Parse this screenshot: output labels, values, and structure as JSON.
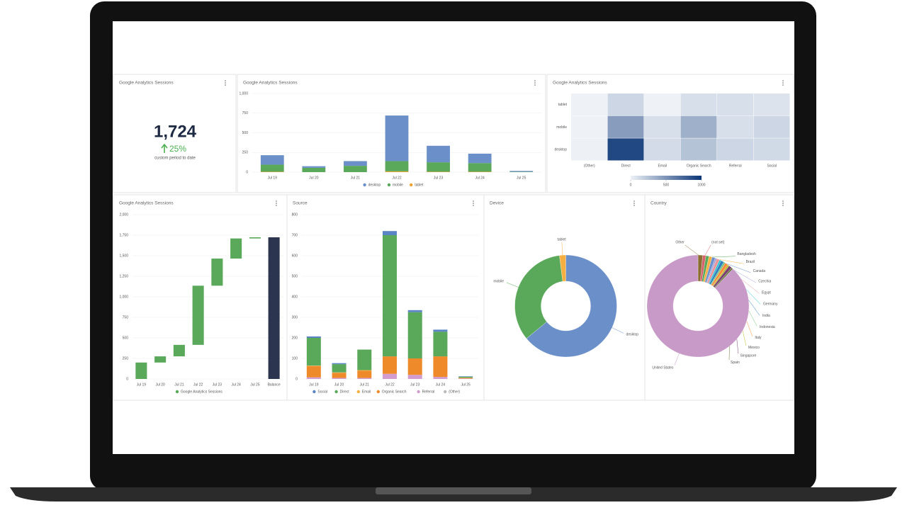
{
  "kpi": {
    "title": "Google Analytics Sessions",
    "value": "1,724",
    "change": "25%",
    "caption": "custom period to date"
  },
  "chart_data": [
    {
      "type": "bar",
      "stacked": true,
      "title": "Google Analytics Sessions",
      "categories": [
        "Jul 19",
        "Jul 20",
        "Jul 21",
        "Jul 22",
        "Jul 23",
        "Jul 24",
        "Jul 25"
      ],
      "series": [
        {
          "name": "desktop",
          "color": "#6a8fc9",
          "values": [
            120,
            20,
            60,
            580,
            210,
            120,
            10
          ]
        },
        {
          "name": "mobile",
          "color": "#5aa85a",
          "values": [
            90,
            55,
            80,
            130,
            120,
            110,
            5
          ]
        },
        {
          "name": "tablet",
          "color": "#f0a030",
          "values": [
            5,
            0,
            0,
            10,
            5,
            5,
            0
          ]
        }
      ],
      "ylim": [
        0,
        1000
      ],
      "yticks": [
        0,
        250,
        500,
        750,
        {
          "value": 1000,
          "label": "1,000"
        }
      ],
      "grid": true
    },
    {
      "type": "heatmap",
      "title": "Google Analytics Sessions",
      "rows": [
        "tablet",
        "mobile",
        "desktop"
      ],
      "columns": [
        "(Other)",
        "Direct",
        "Email",
        "Organic Search",
        "Referral",
        "Social"
      ],
      "values": [
        [
          0,
          150,
          0,
          100,
          100,
          80
        ],
        [
          0,
          450,
          100,
          350,
          100,
          150
        ],
        [
          5,
          900,
          120,
          250,
          150,
          130
        ]
      ],
      "colors": [
        "#eef2f7",
        "#0b3577"
      ],
      "clim": [
        0,
        1000
      ],
      "cticks": [
        0,
        500,
        1000
      ]
    },
    {
      "type": "waterfall",
      "title": "Google Analytics Sessions",
      "categories": [
        "Jul 19",
        "Jul 20",
        "Jul 21",
        "Jul 22",
        "Jul 23",
        "Jul 24",
        "Jul 25"
      ],
      "series": [
        {
          "name": "Google Analytics Sessions",
          "color": "#5aa85a",
          "values": [
            200,
            75,
            140,
            720,
            330,
            245,
            14
          ]
        }
      ],
      "total": {
        "label": "Balance",
        "value": 1724,
        "color": "#2c3550"
      },
      "ylim": [
        0,
        2000
      ],
      "yticks": [
        0,
        250,
        500,
        750,
        {
          "value": 1000,
          "label": "1,000"
        },
        {
          "value": 1250,
          "label": "1,250"
        },
        {
          "value": 1500,
          "label": "1,500"
        },
        {
          "value": 1750,
          "label": "1,750"
        },
        {
          "value": 2000,
          "label": "2,000"
        }
      ],
      "grid": true
    },
    {
      "type": "bar",
      "stacked": true,
      "title": "Source",
      "categories": [
        "Jul 19",
        "Jul 20",
        "Jul 21",
        "Jul 22",
        "Jul 23",
        "Jul 24",
        "Jul 25"
      ],
      "series": [
        {
          "name": "Social",
          "color": "#5b84c4",
          "values": [
            7,
            5,
            0,
            20,
            10,
            10,
            2
          ]
        },
        {
          "name": "Direct",
          "color": "#5aa85a",
          "values": [
            135,
            40,
            100,
            590,
            225,
            120,
            5
          ]
        },
        {
          "name": "Email",
          "color": "#f5b041",
          "values": [
            2,
            2,
            3,
            0,
            0,
            0,
            1
          ]
        },
        {
          "name": "Organic Search",
          "color": "#ef8a2b",
          "values": [
            55,
            25,
            35,
            85,
            80,
            100,
            3
          ]
        },
        {
          "name": "Referral",
          "color": "#d39ccf",
          "values": [
            8,
            5,
            5,
            25,
            20,
            10,
            2
          ]
        },
        {
          "name": "(Other)",
          "color": "#bbbbbb",
          "values": [
            0,
            0,
            0,
            0,
            0,
            0,
            0
          ]
        }
      ],
      "ylim": [
        0,
        800
      ],
      "yticks": [
        0,
        100,
        200,
        300,
        400,
        500,
        600,
        700,
        800
      ],
      "grid": true
    },
    {
      "type": "donut",
      "title": "Device",
      "categories": [
        "desktop",
        "mobile",
        "tablet"
      ],
      "values": [
        64,
        34,
        2
      ],
      "colors": [
        "#6a8fc9",
        "#5aa85a",
        "#f5b041"
      ]
    },
    {
      "type": "donut",
      "title": "Country",
      "categories": [
        "Other",
        "(not set)",
        "Bangladesh",
        "Brazil",
        "Canada",
        "Czechia",
        "Egypt",
        "Germany",
        "India",
        "Indonesia",
        "Italy",
        "Mexico",
        "Singapore",
        "Spain",
        "United States"
      ],
      "values": [
        1.5,
        1,
        1,
        1,
        1,
        0.5,
        1,
        0.5,
        1,
        0.5,
        1,
        0.5,
        1,
        0.5,
        88
      ],
      "colors": [
        "#8c6d31",
        "#d6616b",
        "#5aa85a",
        "#f5b041",
        "#6a8fc9",
        "#9c9ede",
        "#e7969c",
        "#17becf",
        "#3182bd",
        "#74c476",
        "#fd8d3c",
        "#bcbd22",
        "#7b4173",
        "#637939",
        "#c89ac8"
      ]
    }
  ]
}
